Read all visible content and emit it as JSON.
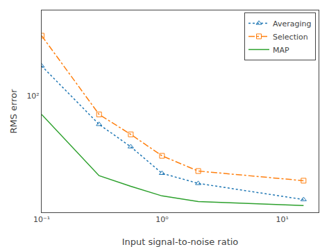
{
  "chart_data": {
    "type": "line",
    "xlabel": "Input signal-to-noise ratio",
    "ylabel": "RMS error",
    "log": true,
    "grid": false,
    "legend": "upper right",
    "xlim": [
      0.1,
      20
    ],
    "ylim": [
      11,
      500
    ],
    "xticks": [
      {
        "value": 0.1,
        "label": "10⁻¹"
      },
      {
        "value": 1,
        "label": "10⁰"
      },
      {
        "value": 10,
        "label": "10¹"
      }
    ],
    "yticks": [
      {
        "value": 100,
        "label": "10²"
      }
    ],
    "x": [
      0.1,
      0.3,
      0.55,
      1.0,
      2.0,
      15.0
    ],
    "series": [
      {
        "name": "Averaging",
        "values": [
          175,
          58,
          38,
          23,
          19,
          14
        ],
        "line_style": "dotted",
        "marker": "triangle-up"
      },
      {
        "name": "Selection",
        "values": [
          310,
          70,
          48,
          32,
          24,
          20
        ],
        "line_style": "dashdot",
        "marker": "square"
      },
      {
        "name": "MAP",
        "values": [
          70,
          22,
          18,
          15,
          13.5,
          12.5
        ],
        "line_style": "solid"
      }
    ]
  }
}
